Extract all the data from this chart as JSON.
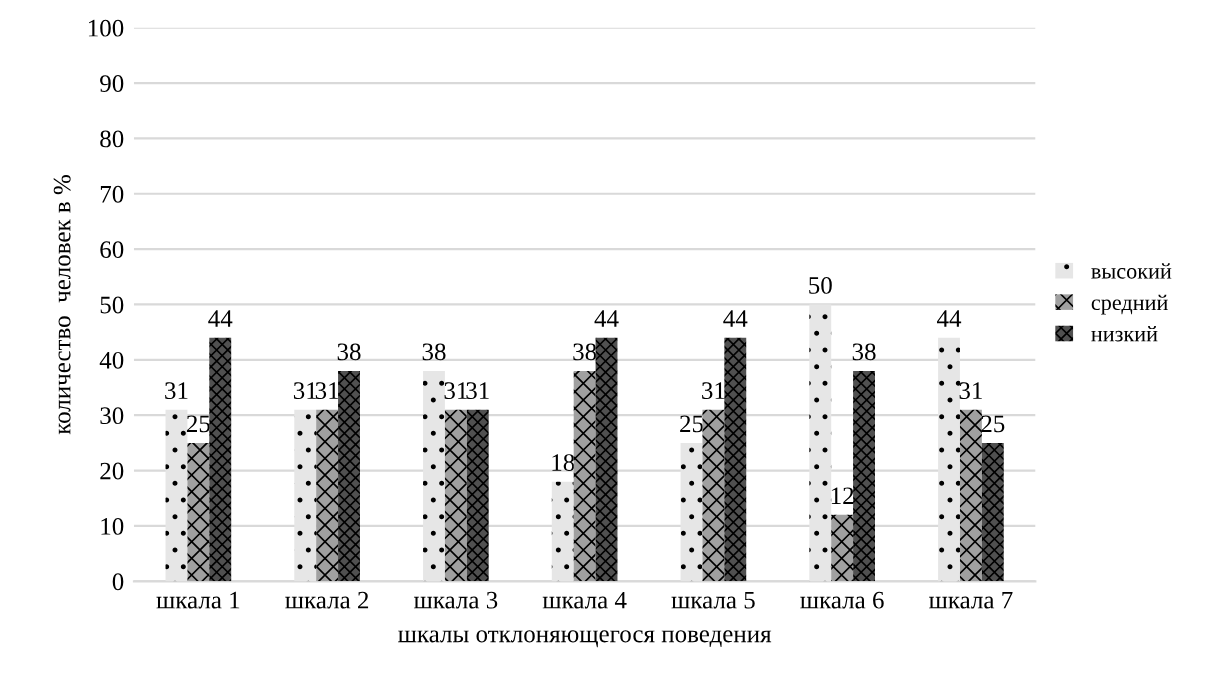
{
  "chart_data": {
    "type": "bar",
    "xlabel": "шкалы отклоняющегося поведения",
    "ylabel": "количество  человек в %",
    "categories": [
      "шкала 1",
      "шкала 2",
      "шкала 3",
      "шкала 4",
      "шкала 5",
      "шкала 6",
      "шкала 7"
    ],
    "series": [
      {
        "name": "высокий",
        "color": "#e6e6e6",
        "values": [
          31,
          31,
          38,
          18,
          25,
          50,
          44
        ]
      },
      {
        "name": "средний",
        "color": "#a0a0a0",
        "values": [
          25,
          31,
          31,
          38,
          31,
          12,
          31
        ]
      },
      {
        "name": "низкий",
        "color": "#505050",
        "values": [
          44,
          38,
          31,
          44,
          44,
          38,
          25
        ]
      }
    ],
    "ylim": [
      0,
      100
    ],
    "yticks": [
      0,
      10,
      20,
      30,
      40,
      50,
      60,
      70,
      80,
      90,
      100
    ],
    "grid": "y",
    "legend": "right",
    "data_labels": true
  }
}
